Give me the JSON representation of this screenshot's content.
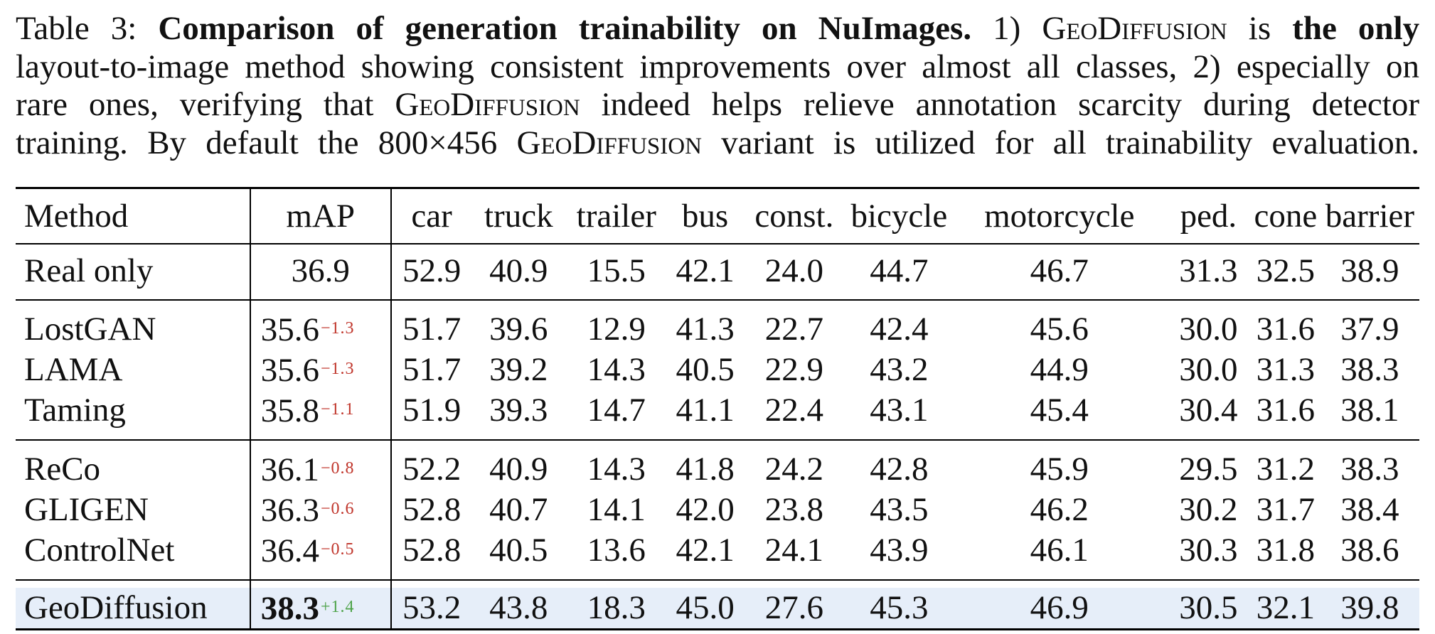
{
  "caption": {
    "label": "Table 3:",
    "title": "Comparison of generation trainability on NuImages.",
    "text1": "1)",
    "geo": "GeoDiffusion",
    "text2": "is",
    "only": "the only",
    "line2": "layout-to-image method showing consistent improvements over almost all classes, 2) especially on",
    "line3a": "rare ones, verifying that",
    "line3b": "indeed helps relieve annotation scarcity during detector",
    "line4a": "training. By default the 800×456",
    "line4b": "variant is utilized for all trainability evaluation."
  },
  "table": {
    "headers": [
      "Method",
      "mAP",
      "car",
      "truck",
      "trailer",
      "bus",
      "const.",
      "bicycle",
      "motorcycle",
      "ped.",
      "cone",
      "barrier"
    ],
    "real_only": {
      "method": "Real only",
      "map": "36.9",
      "values": [
        "52.9",
        "40.9",
        "15.5",
        "42.1",
        "24.0",
        "44.7",
        "46.7",
        "31.3",
        "32.5",
        "38.9"
      ]
    },
    "group1": [
      {
        "method": "LostGAN",
        "map": "35.6",
        "delta": "−1.3",
        "values": [
          "51.7",
          "39.6",
          "12.9",
          "41.3",
          "22.7",
          "42.4",
          "45.6",
          "30.0",
          "31.6",
          "37.9"
        ]
      },
      {
        "method": "LAMA",
        "map": "35.6",
        "delta": "−1.3",
        "values": [
          "51.7",
          "39.2",
          "14.3",
          "40.5",
          "22.9",
          "43.2",
          "44.9",
          "30.0",
          "31.3",
          "38.3"
        ]
      },
      {
        "method": "Taming",
        "map": "35.8",
        "delta": "−1.1",
        "values": [
          "51.9",
          "39.3",
          "14.7",
          "41.1",
          "22.4",
          "43.1",
          "45.4",
          "30.4",
          "31.6",
          "38.1"
        ]
      }
    ],
    "group2": [
      {
        "method": "ReCo",
        "map": "36.1",
        "delta": "−0.8",
        "values": [
          "52.2",
          "40.9",
          "14.3",
          "41.8",
          "24.2",
          "42.8",
          "45.9",
          "29.5",
          "31.2",
          "38.3"
        ]
      },
      {
        "method": "GLIGEN",
        "map": "36.3",
        "delta": "−0.6",
        "values": [
          "52.8",
          "40.7",
          "14.1",
          "42.0",
          "23.8",
          "43.5",
          "46.2",
          "30.2",
          "31.7",
          "38.4"
        ]
      },
      {
        "method": "ControlNet",
        "map": "36.4",
        "delta": "−0.5",
        "values": [
          "52.8",
          "40.5",
          "13.6",
          "42.1",
          "24.1",
          "43.9",
          "46.1",
          "30.3",
          "31.8",
          "38.6"
        ]
      }
    ],
    "ours": {
      "method": "GeoDiffusion",
      "map": "38.3",
      "delta": "+1.4",
      "values": [
        "53.2",
        "43.8",
        "18.3",
        "45.0",
        "27.6",
        "45.3",
        "46.9",
        "30.5",
        "32.1",
        "39.8"
      ]
    },
    "colors": {
      "negative_delta": "#c0352b",
      "positive_delta": "#4ea349",
      "highlight_row": "#e6eef9"
    }
  }
}
